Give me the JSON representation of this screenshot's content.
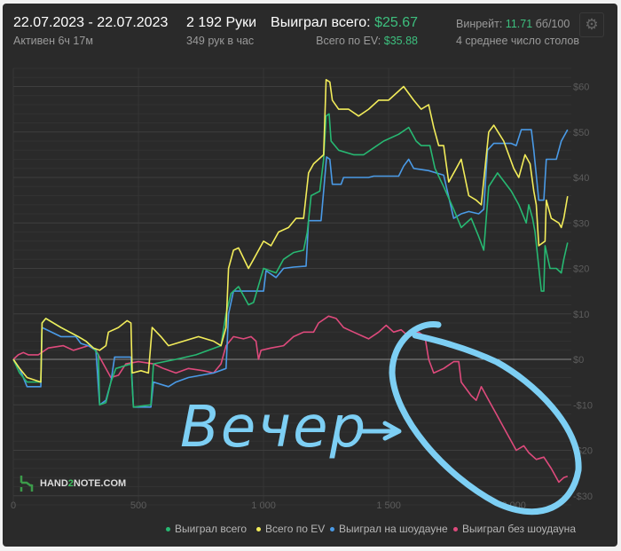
{
  "header": {
    "date_range": "22.07.2023 - 22.07.2023",
    "active": "Активен 6ч 17м",
    "hands": "2 192 Руки",
    "hands_per_hour": "349 рук в час",
    "won_total_label": "Выиграл всего:",
    "won_total_value": "$25.67",
    "ev_total_label": "Всего по EV:",
    "ev_total_value": "$35.88",
    "winrate_label": "Винрейт:",
    "winrate_value": "11.71",
    "winrate_unit": "бб/100",
    "avg_tables": "4 среднее число столов",
    "settings_icon": "gear-icon"
  },
  "logo": {
    "text_a": "HAND",
    "text_b": "2",
    "text_c": "NOTE.COM"
  },
  "annotation": {
    "text": "Вечер",
    "color": "#7dcff4"
  },
  "colors": {
    "green": "#27b872",
    "yellow": "#f2ec5a",
    "blue": "#4a9ae6",
    "red": "#de4a7c",
    "accent": "#3dbf7e"
  },
  "chart_data": {
    "type": "line",
    "xlabel": "",
    "ylabel": "",
    "xlim": [
      0,
      2230
    ],
    "ylim": [
      -32,
      64
    ],
    "x_ticks": [
      0,
      500,
      1000,
      1500,
      2000
    ],
    "x_tick_labels": [
      "0",
      "500",
      "1 000",
      "1 500",
      "2 000"
    ],
    "y_ticks": [
      60,
      50,
      40,
      30,
      20,
      10,
      0,
      -10,
      -20,
      -30
    ],
    "y_tick_labels": [
      "$60",
      "$50",
      "$40",
      "$30",
      "$20",
      "$10",
      "$0",
      "-$10",
      "-$20",
      "-$30"
    ],
    "grid": true,
    "legend_position": "bottom-right",
    "series": [
      {
        "name": "Выиграл всего",
        "color": "#27b872",
        "points": [
          [
            0,
            0
          ],
          [
            25,
            -3
          ],
          [
            55,
            -5
          ],
          [
            110,
            -5
          ],
          [
            115,
            8
          ],
          [
            130,
            9
          ],
          [
            190,
            7
          ],
          [
            260,
            5
          ],
          [
            290,
            4
          ],
          [
            320,
            2.5
          ],
          [
            340,
            1
          ],
          [
            345,
            -10
          ],
          [
            370,
            -9.5
          ],
          [
            390,
            -5
          ],
          [
            410,
            -2
          ],
          [
            470,
            -1
          ],
          [
            480,
            -10.5
          ],
          [
            550,
            -10
          ],
          [
            560,
            -1
          ],
          [
            650,
            0
          ],
          [
            730,
            1
          ],
          [
            830,
            3
          ],
          [
            850,
            10
          ],
          [
            870,
            14.5
          ],
          [
            900,
            16
          ],
          [
            940,
            12
          ],
          [
            960,
            12.5
          ],
          [
            1000,
            20
          ],
          [
            1050,
            19
          ],
          [
            1080,
            22
          ],
          [
            1120,
            23.5
          ],
          [
            1160,
            24
          ],
          [
            1175,
            28
          ],
          [
            1190,
            36
          ],
          [
            1225,
            37
          ],
          [
            1240,
            44
          ],
          [
            1250,
            53.5
          ],
          [
            1262,
            54
          ],
          [
            1270,
            48
          ],
          [
            1300,
            46
          ],
          [
            1360,
            45
          ],
          [
            1400,
            45
          ],
          [
            1440,
            46.5
          ],
          [
            1480,
            48
          ],
          [
            1540,
            49.5
          ],
          [
            1580,
            51
          ],
          [
            1610,
            48
          ],
          [
            1630,
            47
          ],
          [
            1665,
            47
          ],
          [
            1685,
            42
          ],
          [
            1720,
            38
          ],
          [
            1760,
            33
          ],
          [
            1790,
            29
          ],
          [
            1830,
            31
          ],
          [
            1860,
            27
          ],
          [
            1880,
            24
          ],
          [
            1900,
            38
          ],
          [
            1935,
            41
          ],
          [
            1990,
            37
          ],
          [
            2020,
            34
          ],
          [
            2050,
            30
          ],
          [
            2060,
            34
          ],
          [
            2075,
            31
          ],
          [
            2085,
            28
          ],
          [
            2110,
            15
          ],
          [
            2120,
            15
          ],
          [
            2125,
            25
          ],
          [
            2145,
            20
          ],
          [
            2170,
            20
          ],
          [
            2190,
            19
          ],
          [
            2200,
            22
          ],
          [
            2215,
            25.67
          ]
        ]
      },
      {
        "name": "Всего по EV",
        "color": "#f2ec5a",
        "points": [
          [
            0,
            0
          ],
          [
            25,
            -2
          ],
          [
            55,
            -4
          ],
          [
            110,
            -5
          ],
          [
            115,
            8
          ],
          [
            130,
            9
          ],
          [
            190,
            7
          ],
          [
            260,
            5
          ],
          [
            290,
            4
          ],
          [
            320,
            2.5
          ],
          [
            345,
            2
          ],
          [
            370,
            3
          ],
          [
            380,
            6
          ],
          [
            420,
            7
          ],
          [
            455,
            8.5
          ],
          [
            470,
            8
          ],
          [
            475,
            -3
          ],
          [
            510,
            -2.5
          ],
          [
            540,
            -3
          ],
          [
            555,
            7
          ],
          [
            590,
            5
          ],
          [
            620,
            3
          ],
          [
            680,
            4
          ],
          [
            740,
            5
          ],
          [
            800,
            4
          ],
          [
            830,
            3
          ],
          [
            850,
            7
          ],
          [
            860,
            20
          ],
          [
            880,
            24
          ],
          [
            900,
            24.5
          ],
          [
            940,
            20
          ],
          [
            960,
            22
          ],
          [
            1000,
            26
          ],
          [
            1030,
            25
          ],
          [
            1060,
            28
          ],
          [
            1100,
            29
          ],
          [
            1130,
            31
          ],
          [
            1160,
            31
          ],
          [
            1180,
            41
          ],
          [
            1200,
            43
          ],
          [
            1240,
            45
          ],
          [
            1250,
            61.5
          ],
          [
            1265,
            61
          ],
          [
            1275,
            57
          ],
          [
            1300,
            55
          ],
          [
            1340,
            55
          ],
          [
            1380,
            53.5
          ],
          [
            1420,
            55
          ],
          [
            1460,
            57
          ],
          [
            1500,
            57
          ],
          [
            1540,
            59
          ],
          [
            1560,
            60
          ],
          [
            1600,
            57
          ],
          [
            1630,
            55
          ],
          [
            1660,
            56
          ],
          [
            1680,
            51
          ],
          [
            1700,
            47
          ],
          [
            1720,
            47
          ],
          [
            1740,
            39
          ],
          [
            1770,
            42
          ],
          [
            1790,
            44
          ],
          [
            1820,
            36
          ],
          [
            1850,
            35
          ],
          [
            1870,
            34
          ],
          [
            1900,
            50
          ],
          [
            1920,
            51.5
          ],
          [
            1960,
            48
          ],
          [
            2000,
            42
          ],
          [
            2020,
            40
          ],
          [
            2045,
            45
          ],
          [
            2065,
            43
          ],
          [
            2080,
            37
          ],
          [
            2090,
            34
          ],
          [
            2100,
            25
          ],
          [
            2125,
            26
          ],
          [
            2130,
            35
          ],
          [
            2150,
            31
          ],
          [
            2180,
            30
          ],
          [
            2190,
            29
          ],
          [
            2200,
            31
          ],
          [
            2215,
            35.88
          ]
        ]
      },
      {
        "name": "Выиграл на шоудауне",
        "color": "#4a9ae6",
        "points": [
          [
            0,
            0
          ],
          [
            25,
            -2
          ],
          [
            55,
            -6
          ],
          [
            110,
            -6
          ],
          [
            115,
            7
          ],
          [
            190,
            5
          ],
          [
            250,
            5
          ],
          [
            270,
            3.5
          ],
          [
            300,
            3
          ],
          [
            330,
            2
          ],
          [
            345,
            -10
          ],
          [
            370,
            -9
          ],
          [
            390,
            -5
          ],
          [
            405,
            0.5
          ],
          [
            470,
            0.5
          ],
          [
            480,
            -10.5
          ],
          [
            550,
            -10.5
          ],
          [
            560,
            -5
          ],
          [
            620,
            -6
          ],
          [
            650,
            -5
          ],
          [
            700,
            -4
          ],
          [
            800,
            -3
          ],
          [
            850,
            -2
          ],
          [
            860,
            10
          ],
          [
            880,
            15
          ],
          [
            1000,
            15
          ],
          [
            1010,
            19.5
          ],
          [
            1050,
            18
          ],
          [
            1080,
            20
          ],
          [
            1120,
            20.3
          ],
          [
            1170,
            20.5
          ],
          [
            1180,
            30.5
          ],
          [
            1230,
            30.5
          ],
          [
            1240,
            37
          ],
          [
            1252,
            44.5
          ],
          [
            1265,
            44
          ],
          [
            1275,
            38.5
          ],
          [
            1310,
            38.5
          ],
          [
            1320,
            40
          ],
          [
            1420,
            40
          ],
          [
            1440,
            40.3
          ],
          [
            1540,
            40.3
          ],
          [
            1560,
            42.5
          ],
          [
            1580,
            44
          ],
          [
            1600,
            42
          ],
          [
            1660,
            41.5
          ],
          [
            1690,
            41
          ],
          [
            1720,
            40.5
          ],
          [
            1760,
            31
          ],
          [
            1790,
            32
          ],
          [
            1820,
            32.5
          ],
          [
            1860,
            32
          ],
          [
            1880,
            33
          ],
          [
            1895,
            46
          ],
          [
            1920,
            47.5
          ],
          [
            1990,
            47.5
          ],
          [
            2010,
            47
          ],
          [
            2030,
            50.5
          ],
          [
            2070,
            50.5
          ],
          [
            2080,
            46
          ],
          [
            2100,
            35
          ],
          [
            2120,
            35
          ],
          [
            2130,
            44
          ],
          [
            2170,
            44
          ],
          [
            2190,
            48
          ],
          [
            2215,
            50.5
          ]
        ]
      },
      {
        "name": "Выиграл без шоудауна",
        "color": "#de4a7c",
        "points": [
          [
            0,
            0
          ],
          [
            20,
            1
          ],
          [
            40,
            1.5
          ],
          [
            60,
            1
          ],
          [
            100,
            1
          ],
          [
            140,
            2.5
          ],
          [
            200,
            3
          ],
          [
            240,
            2
          ],
          [
            300,
            3
          ],
          [
            330,
            2
          ],
          [
            360,
            -1
          ],
          [
            390,
            -4
          ],
          [
            420,
            -3.5
          ],
          [
            450,
            -1
          ],
          [
            500,
            -0.5
          ],
          [
            560,
            -1
          ],
          [
            600,
            -2
          ],
          [
            650,
            -3
          ],
          [
            700,
            -2
          ],
          [
            760,
            -2.5
          ],
          [
            800,
            -3
          ],
          [
            830,
            -1
          ],
          [
            850,
            3
          ],
          [
            880,
            5
          ],
          [
            920,
            4.5
          ],
          [
            950,
            5
          ],
          [
            970,
            4
          ],
          [
            980,
            0
          ],
          [
            990,
            2
          ],
          [
            1030,
            2.5
          ],
          [
            1080,
            3
          ],
          [
            1120,
            5
          ],
          [
            1160,
            6
          ],
          [
            1200,
            6
          ],
          [
            1220,
            8
          ],
          [
            1260,
            9.5
          ],
          [
            1290,
            9
          ],
          [
            1320,
            7
          ],
          [
            1360,
            6
          ],
          [
            1400,
            5
          ],
          [
            1420,
            4.5
          ],
          [
            1460,
            6
          ],
          [
            1490,
            7.5
          ],
          [
            1520,
            6
          ],
          [
            1550,
            6.5
          ],
          [
            1580,
            5
          ],
          [
            1620,
            6
          ],
          [
            1645,
            5
          ],
          [
            1660,
            0
          ],
          [
            1680,
            -3
          ],
          [
            1720,
            -2
          ],
          [
            1760,
            -0.5
          ],
          [
            1780,
            -0.5
          ],
          [
            1790,
            -5
          ],
          [
            1830,
            -8
          ],
          [
            1850,
            -9
          ],
          [
            1870,
            -6
          ],
          [
            1900,
            -9
          ],
          [
            1930,
            -12
          ],
          [
            1960,
            -15
          ],
          [
            1990,
            -18
          ],
          [
            2010,
            -20
          ],
          [
            2040,
            -19
          ],
          [
            2060,
            -20.5
          ],
          [
            2090,
            -22
          ],
          [
            2120,
            -21.5
          ],
          [
            2150,
            -24
          ],
          [
            2180,
            -27
          ],
          [
            2200,
            -26
          ],
          [
            2215,
            -25.7
          ]
        ]
      }
    ]
  }
}
